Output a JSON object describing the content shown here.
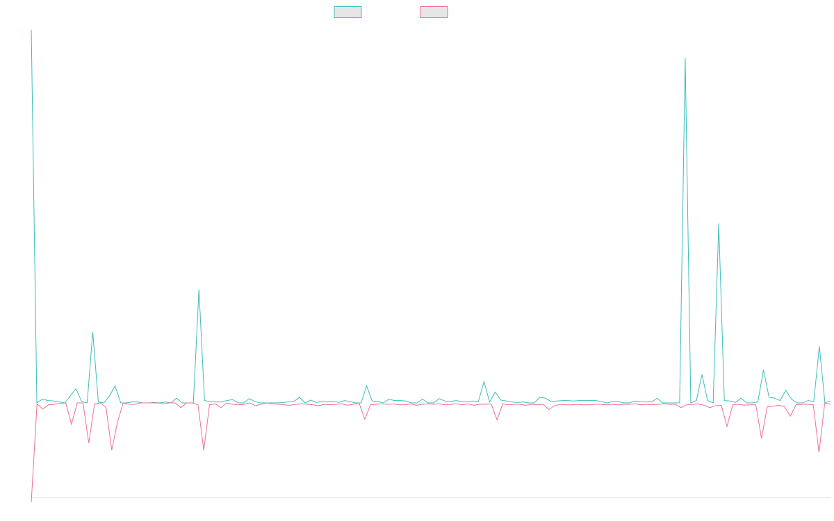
{
  "chart_data": {
    "type": "line",
    "title": "",
    "xlabel": "",
    "ylabel": "",
    "legend": {
      "position": "top-center",
      "show": true
    },
    "grid": false,
    "ylim": [
      -20,
      80
    ],
    "series": [
      {
        "color": "#3cbcbc",
        "values": [
          79,
          0,
          0.8,
          0.5,
          0.4,
          0.2,
          0,
          1.5,
          3,
          0.3,
          0,
          15,
          0.2,
          0,
          1.5,
          3.6,
          0,
          0,
          0.2,
          0.2,
          0,
          0,
          0.1,
          0,
          0.2,
          0,
          1,
          0,
          0,
          0,
          24,
          0.5,
          0.3,
          0.2,
          0.2,
          0.5,
          0.7,
          0,
          0,
          0.9,
          0.3,
          0,
          0,
          0,
          0,
          0.1,
          0.2,
          0.3,
          1.2,
          0,
          0.6,
          0.1,
          0.3,
          0.2,
          0.4,
          0.1,
          0.5,
          0.3,
          0,
          0,
          3.6,
          0.4,
          0.3,
          0,
          0.8,
          0.5,
          0.5,
          0.4,
          0,
          0,
          0.8,
          0,
          0,
          0.9,
          0.4,
          0.3,
          0.5,
          0.3,
          0.2,
          0.4,
          0.3,
          4.5,
          0.2,
          2.3,
          0.6,
          0.4,
          0.2,
          0.1,
          0.2,
          0,
          0,
          1.2,
          1,
          0.3,
          0.4,
          0.5,
          0.5,
          0.4,
          0.5,
          0.5,
          0.5,
          0.5,
          0.3,
          0,
          0.3,
          0.3,
          0,
          0,
          0.4,
          0.3,
          0.2,
          0.2,
          1,
          0,
          0,
          0,
          0,
          73,
          0,
          0.5,
          6,
          0.5,
          0,
          38,
          0.5,
          0.4,
          0.1,
          1,
          0,
          0,
          0.2,
          7,
          1.2,
          1,
          0.5,
          2.7,
          0.8,
          0,
          0,
          0.5,
          0.3,
          12,
          0,
          0.4
        ]
      },
      {
        "color": "#f06e91",
        "values": [
          -21,
          -0.2,
          -1.3,
          -0.4,
          -0.3,
          -0.1,
          0,
          -4.5,
          0,
          0,
          -8.5,
          -0.2,
          0,
          -1,
          -10,
          -4,
          0,
          -0.3,
          -0.3,
          0,
          0,
          0,
          0,
          -0.2,
          0,
          0,
          -1,
          0,
          0,
          -0.4,
          -10,
          -0.4,
          -0.2,
          -1,
          0,
          -0.3,
          -0.4,
          -0.3,
          0,
          -0.6,
          -0.3,
          0,
          -0.2,
          -0.3,
          -0.4,
          -0.5,
          -0.3,
          -0.2,
          -0.3,
          -0.4,
          -0.6,
          -0.3,
          -0.4,
          -0.3,
          -0.2,
          -0.5,
          -0.3,
          0,
          -3.5,
          -0.4,
          -0.3,
          -0.2,
          -0.3,
          -0.2,
          -0.4,
          -0.4,
          -0.2,
          -0.5,
          -0.3,
          -0.2,
          -0.3,
          -0.2,
          -0.4,
          -0.3,
          -0.2,
          -0.4,
          -0.2,
          -0.5,
          -0.3,
          -0.3,
          -0.2,
          -3.6,
          -0.2,
          -0.4,
          -0.3,
          -0.3,
          -0.5,
          -0.3,
          -0.4,
          -0.3,
          -1.4,
          -0.6,
          -0.3,
          -0.4,
          -0.4,
          -0.3,
          -0.4,
          -0.4,
          -0.3,
          -0.3,
          -0.4,
          -0.3,
          -0.4,
          -0.3,
          -0.3,
          -0.2,
          -0.4,
          -0.3,
          -0.4,
          -0.3,
          -0.2,
          -0.3,
          -0.3,
          -1,
          -0.4,
          -0.3,
          -0.2,
          -0.5,
          -1,
          -0.6,
          -0.5,
          -5,
          -0.4,
          -0.3,
          -0.5,
          -0.4,
          -0.4,
          -7.5,
          -0.8,
          -0.7,
          -0.5,
          -0.8,
          -2.8,
          -0.4,
          -0.3,
          -0.3,
          -0.4,
          -10.5,
          0,
          -0.3
        ]
      }
    ]
  }
}
